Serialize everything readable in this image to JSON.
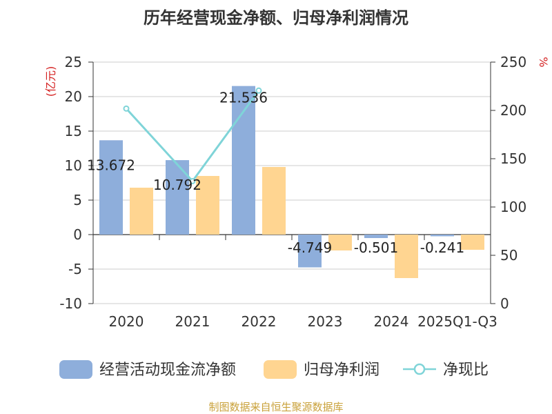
{
  "chart_data": {
    "type": "bar",
    "title": "历年经营现金净额、归母净利润情况",
    "source": "制图数据来自恒生聚源数据库",
    "categories": [
      "2020",
      "2021",
      "2022",
      "2023",
      "2024",
      "2025Q1-Q3"
    ],
    "y_left": {
      "label": "(亿元)",
      "min": -10,
      "max": 25,
      "ticks": [
        -10,
        -5,
        0,
        5,
        10,
        15,
        20,
        25
      ]
    },
    "y_right": {
      "label": "%",
      "min": 0,
      "max": 250,
      "ticks": [
        0,
        50,
        100,
        150,
        200,
        250
      ]
    },
    "grid": true,
    "legend_position": "bottom",
    "series": [
      {
        "name": "经营活动现金流净额",
        "type": "bar",
        "axis": "left",
        "color": "#8eaedb",
        "values": [
          13.672,
          10.792,
          21.536,
          -4.749,
          -0.501,
          -0.241
        ],
        "labels": [
          "13.672",
          "10.792",
          "21.536",
          "-4.749",
          "-0.501",
          "-0.241"
        ]
      },
      {
        "name": "归母净利润",
        "type": "bar",
        "axis": "left",
        "color": "#ffd591",
        "values": [
          6.8,
          8.5,
          9.8,
          -2.3,
          -6.3,
          -2.2
        ]
      },
      {
        "name": "净现比",
        "type": "line",
        "axis": "right",
        "color": "#7fd4d8",
        "values": [
          201.9,
          126.8,
          220.5,
          null,
          null,
          null
        ]
      }
    ]
  }
}
